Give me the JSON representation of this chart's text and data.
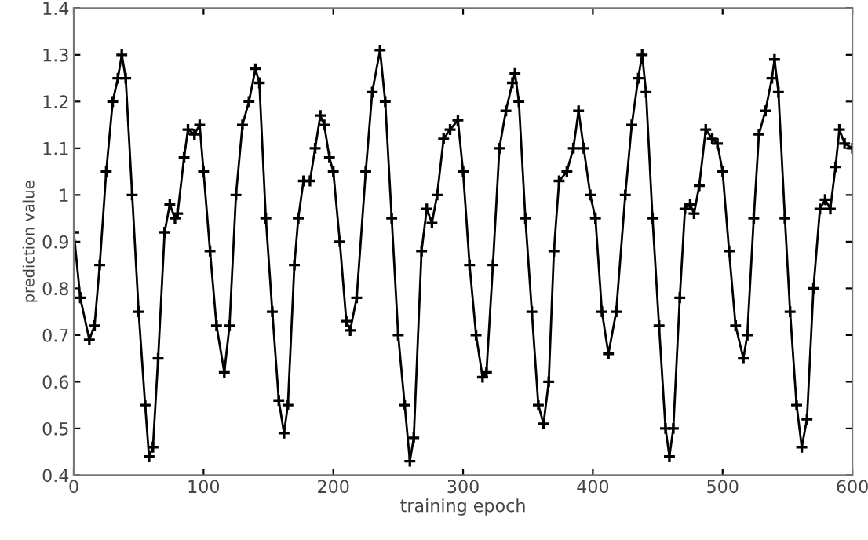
{
  "chart_data": {
    "type": "line",
    "xlabel": "training epoch",
    "ylabel": "prediction value",
    "x": [
      0,
      5,
      12,
      16,
      20,
      25,
      30,
      34,
      37,
      40,
      45,
      50,
      55,
      58,
      61,
      65,
      70,
      74,
      78,
      80,
      85,
      88,
      93,
      97,
      100,
      105,
      110,
      116,
      120,
      125,
      130,
      135,
      140,
      143,
      148,
      153,
      158,
      162,
      165,
      170,
      173,
      177,
      182,
      186,
      190,
      193,
      197,
      200,
      205,
      210,
      213,
      218,
      225,
      230,
      236,
      240,
      245,
      250,
      255,
      259,
      262,
      268,
      272,
      276,
      280,
      285,
      290,
      296,
      300,
      305,
      310,
      315,
      318,
      323,
      328,
      333,
      338,
      340,
      343,
      348,
      353,
      358,
      362,
      366,
      370,
      374,
      380,
      385,
      389,
      393,
      398,
      402,
      407,
      412,
      418,
      425,
      430,
      435,
      438,
      441,
      446,
      451,
      456,
      459,
      462,
      467,
      471,
      475,
      478,
      482,
      487,
      492,
      496,
      500,
      505,
      510,
      516,
      519,
      524,
      528,
      533,
      538,
      540,
      543,
      548,
      552,
      557,
      561,
      565,
      570,
      575,
      579,
      583,
      587,
      590,
      594,
      600
    ],
    "series": [
      {
        "color": "#000000",
        "values": [
          0.92,
          0.78,
          0.69,
          0.72,
          0.85,
          1.05,
          1.2,
          1.25,
          1.3,
          1.25,
          1.0,
          0.75,
          0.55,
          0.44,
          0.46,
          0.65,
          0.92,
          0.98,
          0.95,
          0.96,
          1.08,
          1.14,
          1.13,
          1.15,
          1.05,
          0.88,
          0.72,
          0.62,
          0.72,
          1.0,
          1.15,
          1.2,
          1.27,
          1.24,
          0.95,
          0.75,
          0.56,
          0.49,
          0.55,
          0.85,
          0.95,
          1.03,
          1.03,
          1.1,
          1.17,
          1.15,
          1.08,
          1.05,
          0.9,
          0.73,
          0.71,
          0.78,
          1.05,
          1.22,
          1.31,
          1.2,
          0.95,
          0.7,
          0.55,
          0.43,
          0.48,
          0.88,
          0.97,
          0.94,
          1.0,
          1.12,
          1.14,
          1.16,
          1.05,
          0.85,
          0.7,
          0.61,
          0.62,
          0.85,
          1.1,
          1.18,
          1.24,
          1.26,
          1.2,
          0.95,
          0.75,
          0.55,
          0.51,
          0.6,
          0.88,
          1.03,
          1.05,
          1.1,
          1.18,
          1.1,
          1.0,
          0.95,
          0.75,
          0.66,
          0.75,
          1.0,
          1.15,
          1.25,
          1.3,
          1.22,
          0.95,
          0.72,
          0.5,
          0.44,
          0.5,
          0.78,
          0.97,
          0.98,
          0.96,
          1.02,
          1.14,
          1.12,
          1.11,
          1.05,
          0.88,
          0.72,
          0.65,
          0.7,
          0.95,
          1.13,
          1.18,
          1.25,
          1.29,
          1.22,
          0.95,
          0.75,
          0.55,
          0.46,
          0.52,
          0.8,
          0.97,
          0.99,
          0.97,
          1.06,
          1.14,
          1.11,
          1.1
        ]
      }
    ],
    "xlim": [
      0,
      600
    ],
    "xticks": [
      0,
      100,
      200,
      300,
      400,
      500,
      600
    ],
    "ylim": [
      0.4,
      1.4
    ],
    "yticks": [
      0.4,
      0.5,
      0.6,
      0.7,
      0.8,
      0.9,
      1,
      1.1,
      1.2,
      1.3,
      1.4
    ],
    "marker": "cross",
    "line_style": "solid",
    "grid": false,
    "legend": false
  }
}
